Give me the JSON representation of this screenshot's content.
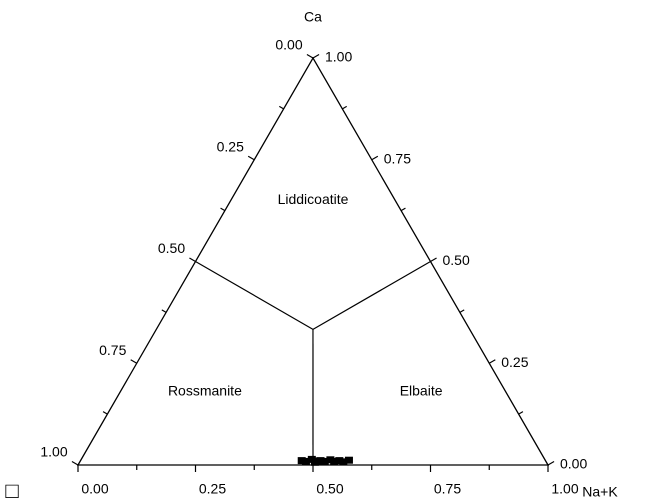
{
  "chart_data": {
    "type": "ternary",
    "apex_labels": {
      "top": "Ca",
      "right": "Na+K",
      "left": "□"
    },
    "left_ticks": [
      {
        "value": 0,
        "label": "0.00"
      },
      {
        "value": 0.25,
        "label": "0.25"
      },
      {
        "value": 0.5,
        "label": "0.50"
      },
      {
        "value": 0.75,
        "label": "0.75"
      },
      {
        "value": 1,
        "label": "1.00"
      }
    ],
    "right_ticks": [
      {
        "value": 1,
        "label": "1.00"
      },
      {
        "value": 0.75,
        "label": "0.75"
      },
      {
        "value": 0.5,
        "label": "0.50"
      },
      {
        "value": 0.25,
        "label": "0.25"
      },
      {
        "value": 0,
        "label": "0.00"
      }
    ],
    "bottom_ticks": [
      {
        "value": 0,
        "label": "0.00"
      },
      {
        "value": 0.25,
        "label": "0.25"
      },
      {
        "value": 0.5,
        "label": "0.50"
      },
      {
        "value": 0.75,
        "label": "0.75"
      },
      {
        "value": 1,
        "label": "1.00"
      }
    ],
    "minor_ticks": [
      0.125,
      0.375,
      0.625,
      0.875
    ],
    "boundaries": [
      {
        "from": [
          0.3333,
          0.3333
        ],
        "to": [
          0.5,
          0
        ]
      },
      {
        "from": [
          0.3333,
          0.3333
        ],
        "to": [
          0.5,
          0.5
        ]
      },
      {
        "from": [
          0.3333,
          0.3333
        ],
        "to": [
          0,
          0.5
        ]
      }
    ],
    "regions": [
      {
        "name": "Liddicoatite",
        "ca": 0.65,
        "nak": 0.175
      },
      {
        "name": "Rossmanite",
        "ca": 0.18,
        "nak": 0.18
      },
      {
        "name": "Elbaite",
        "ca": 0.18,
        "nak": 0.64
      }
    ],
    "points": {
      "color": "#000000",
      "ca": [
        0.012,
        0.01,
        0.015,
        0.008,
        0.012,
        0.01,
        0.014,
        0.01,
        0.012,
        0.009,
        0.013,
        0.011
      ],
      "nak": [
        0.47,
        0.48,
        0.49,
        0.5,
        0.51,
        0.52,
        0.53,
        0.54,
        0.55,
        0.56,
        0.57,
        0.505
      ]
    }
  }
}
